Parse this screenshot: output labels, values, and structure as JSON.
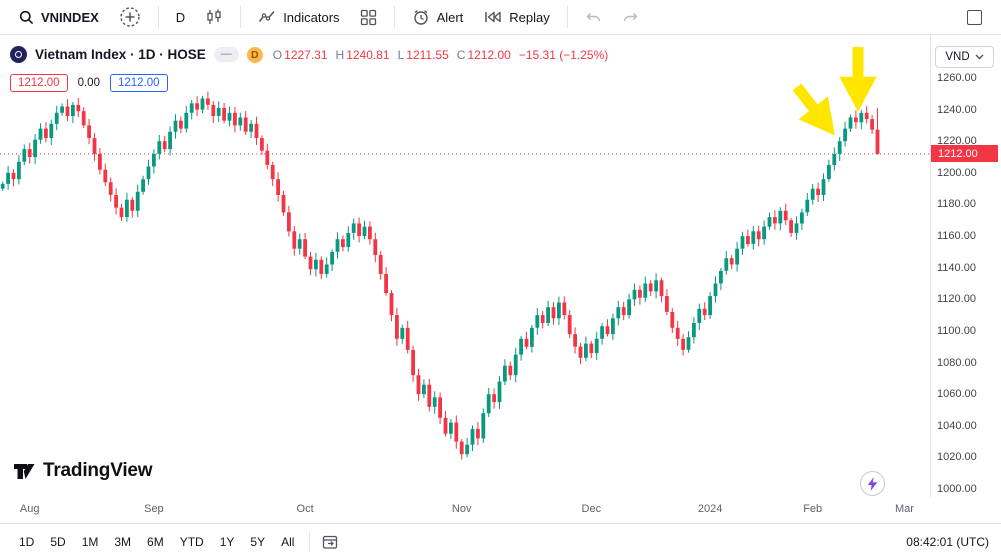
{
  "toolbar": {
    "symbol": "VNINDEX",
    "interval": "D",
    "indicators_label": "Indicators",
    "alert_label": "Alert",
    "replay_label": "Replay"
  },
  "header": {
    "title": "Vietnam Index · 1D · HOSE",
    "badges": {
      "minus": "—",
      "d": "D"
    },
    "ohlc": {
      "o_label": "O",
      "o": "1227.31",
      "h_label": "H",
      "h": "1240.81",
      "l_label": "L",
      "l": "1211.55",
      "c_label": "C",
      "c": "1212.00",
      "change": "−15.31 (−1.25%)"
    },
    "currency": "VND"
  },
  "price_labels": {
    "alert_price": "1212.00",
    "countdown": "0.00",
    "order_price": "1212.00"
  },
  "price_tag": "1212.00",
  "watermark": {
    "brand": "TradingView"
  },
  "bottom_toolbar": {
    "ranges": [
      "1D",
      "5D",
      "1M",
      "3M",
      "6M",
      "YTD",
      "1Y",
      "5Y",
      "All"
    ],
    "clock": "08:42:01 (UTC)"
  },
  "chart_data": {
    "type": "candlestick",
    "symbol": "VNINDEX",
    "exchange": "HOSE",
    "interval": "1D",
    "ylim": [
      1000,
      1260
    ],
    "y_ticks": [
      1260,
      1240,
      1220,
      1200,
      1180,
      1160,
      1140,
      1120,
      1100,
      1080,
      1060,
      1040,
      1020,
      1000
    ],
    "x_ticks": [
      {
        "label": "Aug",
        "i": 5
      },
      {
        "label": "Sep",
        "i": 28
      },
      {
        "label": "Oct",
        "i": 56
      },
      {
        "label": "Nov",
        "i": 85
      },
      {
        "label": "Dec",
        "i": 109
      },
      {
        "label": "2024",
        "i": 131
      },
      {
        "label": "Feb",
        "i": 150
      },
      {
        "label": "Mar",
        "i": 167
      }
    ],
    "first_open": 1190,
    "last_price": 1212.0,
    "last_candle": {
      "o": 1227.31,
      "h": 1240.81,
      "l": 1211.55,
      "c": 1212.0
    },
    "closes": [
      1193,
      1200,
      1196,
      1207,
      1215,
      1210,
      1221,
      1228,
      1222,
      1231,
      1238,
      1242,
      1236,
      1243,
      1239,
      1230,
      1222,
      1212,
      1202,
      1194,
      1186,
      1178,
      1172,
      1183,
      1176,
      1188,
      1196,
      1204,
      1212,
      1220,
      1215,
      1226,
      1233,
      1228,
      1238,
      1244,
      1240,
      1247,
      1243,
      1236,
      1241,
      1233,
      1238,
      1230,
      1235,
      1226,
      1231,
      1222,
      1214,
      1205,
      1196,
      1186,
      1175,
      1163,
      1152,
      1158,
      1147,
      1139,
      1145,
      1136,
      1142,
      1150,
      1158,
      1153,
      1162,
      1168,
      1160,
      1166,
      1158,
      1148,
      1136,
      1124,
      1110,
      1095,
      1102,
      1088,
      1072,
      1060,
      1066,
      1052,
      1058,
      1045,
      1035,
      1042,
      1030,
      1022,
      1028,
      1038,
      1032,
      1048,
      1060,
      1055,
      1068,
      1078,
      1072,
      1085,
      1095,
      1090,
      1102,
      1110,
      1105,
      1115,
      1108,
      1118,
      1110,
      1098,
      1090,
      1083,
      1092,
      1086,
      1095,
      1103,
      1098,
      1108,
      1115,
      1110,
      1120,
      1126,
      1121,
      1130,
      1125,
      1132,
      1122,
      1112,
      1102,
      1095,
      1088,
      1096,
      1105,
      1114,
      1110,
      1122,
      1130,
      1138,
      1146,
      1142,
      1152,
      1160,
      1155,
      1163,
      1158,
      1166,
      1172,
      1168,
      1176,
      1170,
      1162,
      1168,
      1175,
      1183,
      1190,
      1186,
      1196,
      1205,
      1212,
      1220,
      1228,
      1235,
      1232,
      1238,
      1234,
      1227.31,
      1212.0
    ],
    "colors": {
      "up": "#089981",
      "down": "#f23645",
      "last_tag_bg": "#f23645",
      "annotation": "#ffe600"
    }
  }
}
